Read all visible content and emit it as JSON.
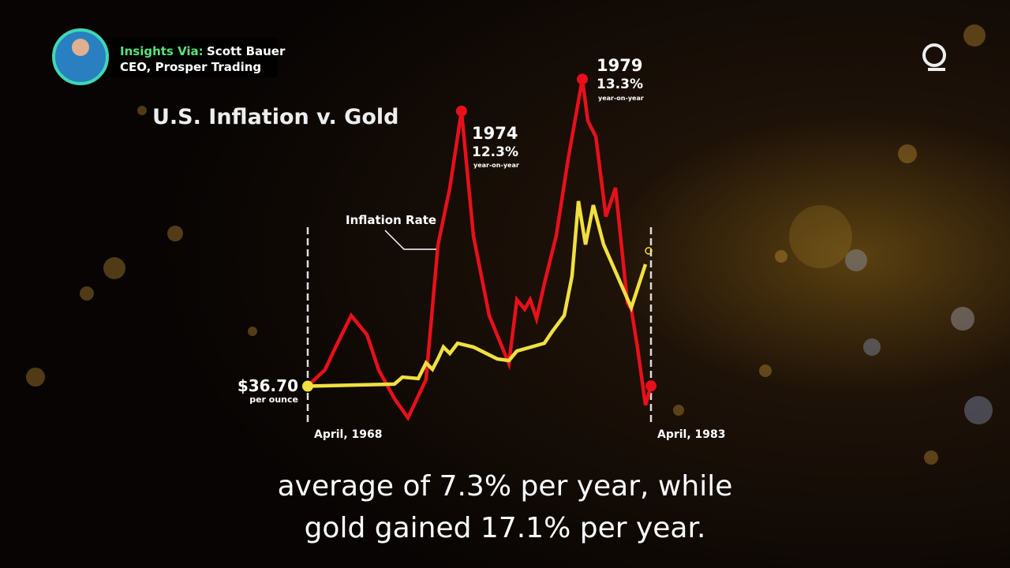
{
  "header": {
    "label": "Insights Via:",
    "name": "Scott Bauer",
    "role": "CEO, Prosper Trading"
  },
  "captions": [
    "average of 7.3% per year, while",
    "gold gained 17.1% per year."
  ],
  "chart_data": {
    "type": "line",
    "title": "U.S. Inflation v. Gold",
    "annotations": [
      "1974",
      "12.3%",
      "year-on-year",
      "1979",
      "13.3%",
      "year-on-year",
      "$36.70",
      "per ounce"
    ],
    "xlim": [
      1968.25,
      1983.25
    ],
    "xticks": [
      {
        "value": 1968.25,
        "label": "April, 1968"
      },
      {
        "value": 1983.25,
        "label": "April, 1983"
      }
    ],
    "ylim": [
      2,
      14
    ],
    "y2lim": [
      0,
      1000
    ],
    "series": [
      {
        "name": "Inflation Rate",
        "color": "#e8101a",
        "x": [
          1968.25,
          1969.0,
          1969.46,
          1970.15,
          1970.84,
          1971.35,
          1972.04,
          1972.63,
          1973.42,
          1973.94,
          1974.46,
          1974.97,
          1975.49,
          1976.18,
          1977.04,
          1977.39,
          1977.73,
          1977.97,
          1978.25,
          1978.59,
          1979.11,
          1979.63,
          1980.25,
          1980.49,
          1980.84,
          1981.28,
          1981.7,
          1982.22,
          1982.39,
          1982.66,
          1983.01,
          1983.25
        ],
        "values": [
          3.7,
          4.2,
          4.9,
          5.9,
          5.3,
          4.2,
          3.3,
          2.7,
          3.9,
          8.1,
          9.9,
          12.3,
          8.4,
          5.9,
          4.4,
          6.4,
          6.1,
          6.4,
          5.8,
          6.9,
          8.4,
          10.8,
          13.3,
          12.0,
          11.5,
          9.0,
          9.9,
          6.3,
          6.1,
          4.9,
          3.1,
          3.7
        ]
      },
      {
        "color": "#f0e040",
        "axis": "y2",
        "x": [
          1968.25,
          1972.04,
          1972.39,
          1973.08,
          1973.42,
          1973.7,
          1973.94,
          1974.18,
          1974.46,
          1974.8,
          1975.49,
          1976.53,
          1977.04,
          1977.39,
          1978.59,
          1978.94,
          1979.46,
          1979.8,
          1980.08,
          1980.39,
          1980.73,
          1981.18,
          1982.39,
          1983.01
        ],
        "values": [
          36.7,
          44,
          68,
          63,
          117,
          95,
          131,
          172,
          150,
          185,
          172,
          131,
          125,
          158,
          185,
          226,
          281,
          417,
          676,
          526,
          662,
          526,
          308,
          458
        ]
      }
    ]
  }
}
